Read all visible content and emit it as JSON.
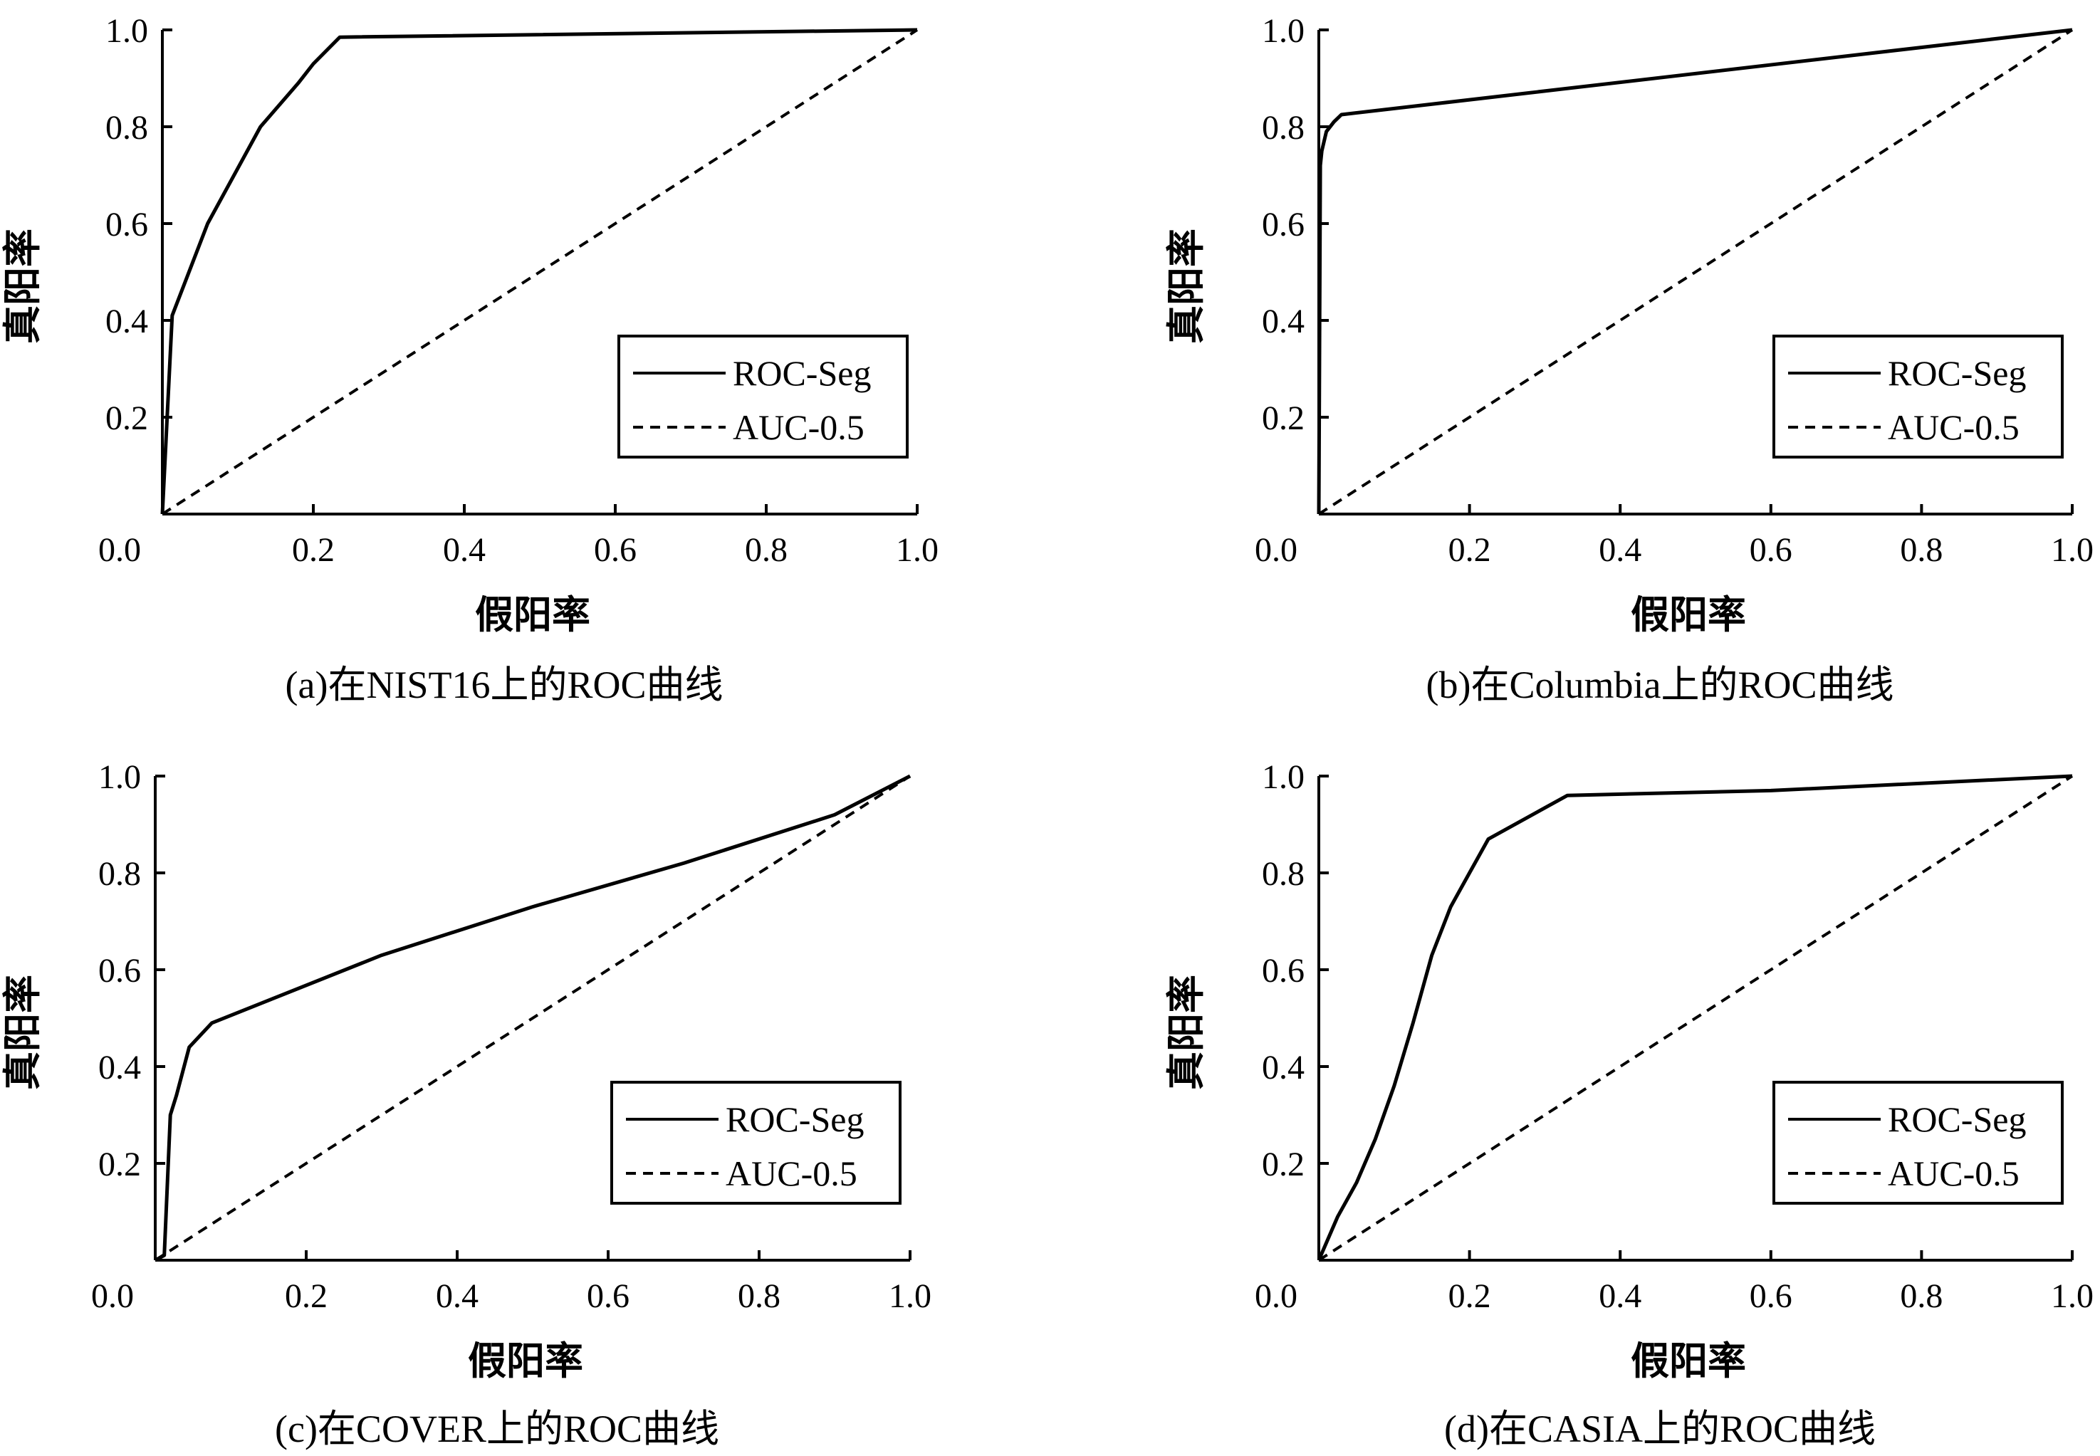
{
  "chart_data": [
    {
      "type": "line",
      "caption": "(a)在NIST16上的ROC曲线",
      "xlabel": "假阳率",
      "ylabel": "真阳率",
      "xlim": [
        0,
        1
      ],
      "ylim": [
        0,
        1
      ],
      "x_ticks": [
        "0.2",
        "0.4",
        "0.6",
        "0.8",
        "1.0"
      ],
      "y_ticks": [
        "0.2",
        "0.4",
        "0.6",
        "0.8",
        "1.0"
      ],
      "origin_label": "0.0",
      "legend_position": "lower-right",
      "grid": false,
      "series": [
        {
          "name": "ROC-Seg",
          "style": "solid",
          "x": [
            0,
            0.013,
            0.06,
            0.13,
            0.18,
            0.2,
            0.235,
            1.0
          ],
          "y": [
            0,
            0.41,
            0.6,
            0.8,
            0.89,
            0.93,
            0.985,
            1.0
          ]
        },
        {
          "name": "AUC-0.5",
          "style": "dashed",
          "x": [
            0,
            1
          ],
          "y": [
            0,
            1
          ]
        }
      ]
    },
    {
      "type": "line",
      "caption": "(b)在Columbia上的ROC曲线",
      "xlabel": "假阳率",
      "ylabel": "真阳率",
      "xlim": [
        0,
        1
      ],
      "ylim": [
        0,
        1
      ],
      "x_ticks": [
        "0.2",
        "0.4",
        "0.6",
        "0.8",
        "1.0"
      ],
      "y_ticks": [
        "0.2",
        "0.4",
        "0.6",
        "0.8",
        "1.0"
      ],
      "origin_label": "0.0",
      "legend_position": "lower-right",
      "grid": false,
      "series": [
        {
          "name": "ROC-Seg",
          "style": "solid",
          "x": [
            0,
            0.002,
            0.004,
            0.01,
            0.02,
            0.03,
            1.0
          ],
          "y": [
            0,
            0.72,
            0.75,
            0.79,
            0.81,
            0.825,
            1.0
          ]
        },
        {
          "name": "AUC-0.5",
          "style": "dashed",
          "x": [
            0,
            1
          ],
          "y": [
            0,
            1
          ]
        }
      ]
    },
    {
      "type": "line",
      "caption": "(c)在COVER上的ROC曲线",
      "xlabel": "假阳率",
      "ylabel": "真阳率",
      "xlim": [
        0,
        1
      ],
      "ylim": [
        0,
        1
      ],
      "x_ticks": [
        "0.2",
        "0.4",
        "0.6",
        "0.8",
        "1.0"
      ],
      "y_ticks": [
        "0.2",
        "0.4",
        "0.6",
        "0.8",
        "1.0"
      ],
      "origin_label": "0.0",
      "legend_position": "lower-right",
      "grid": false,
      "series": [
        {
          "name": "ROC-Seg",
          "style": "solid",
          "x": [
            0,
            0.012,
            0.02,
            0.028,
            0.045,
            0.075,
            0.3,
            0.5,
            0.7,
            0.9,
            1.0
          ],
          "y": [
            0,
            0.01,
            0.3,
            0.34,
            0.44,
            0.49,
            0.63,
            0.73,
            0.82,
            0.92,
            1.0
          ]
        },
        {
          "name": "AUC-0.5",
          "style": "dashed",
          "x": [
            0,
            1
          ],
          "y": [
            0,
            1
          ]
        }
      ]
    },
    {
      "type": "line",
      "caption": "(d)在CASIA上的ROC曲线",
      "xlabel": "假阳率",
      "ylabel": "真阳率",
      "xlim": [
        0,
        1
      ],
      "ylim": [
        0,
        1
      ],
      "x_ticks": [
        "0.2",
        "0.4",
        "0.6",
        "0.8",
        "1.0"
      ],
      "y_ticks": [
        "0.2",
        "0.4",
        "0.6",
        "0.8",
        "1.0"
      ],
      "origin_label": "0.0",
      "legend_position": "lower-right",
      "grid": false,
      "series": [
        {
          "name": "ROC-Seg",
          "style": "solid",
          "x": [
            0,
            0.025,
            0.05,
            0.075,
            0.1,
            0.125,
            0.15,
            0.175,
            0.2,
            0.225,
            0.33,
            0.6,
            1.0
          ],
          "y": [
            0,
            0.09,
            0.16,
            0.25,
            0.36,
            0.49,
            0.63,
            0.73,
            0.8,
            0.87,
            0.96,
            0.97,
            1.0
          ]
        },
        {
          "name": "AUC-0.5",
          "style": "dashed",
          "x": [
            0,
            1
          ],
          "y": [
            0,
            1
          ]
        }
      ]
    }
  ]
}
